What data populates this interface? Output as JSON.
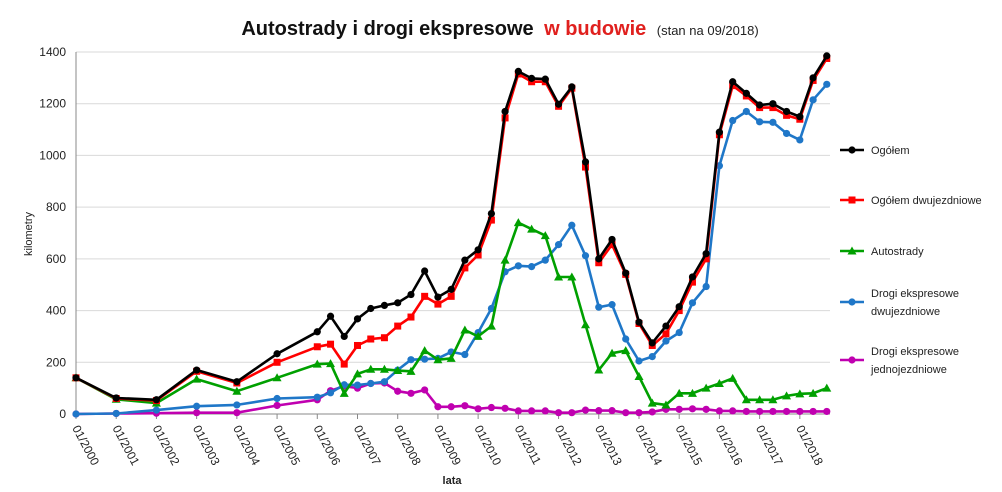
{
  "chart_data": {
    "type": "line",
    "title": "Autostrady i drogi ekspresowe",
    "title_accent": "w budowie",
    "subtitle": "(stan na 09/2018)",
    "xlabel": "lata",
    "ylabel": "kilometry",
    "ylim": [
      0,
      1400
    ],
    "yticks": [
      0,
      200,
      400,
      600,
      800,
      1000,
      1200,
      1400
    ],
    "xlim": [
      2000,
      2018.75
    ],
    "xticks": [
      "01/2000",
      "01/2001",
      "01/2002",
      "01/2003",
      "01/2004",
      "01/2005",
      "01/2006",
      "01/2007",
      "01/2008",
      "01/2009",
      "01/2010",
      "01/2011",
      "01/2012",
      "01/2013",
      "01/2014",
      "01/2015",
      "01/2016",
      "01/2017",
      "01/2018"
    ],
    "grid": "horizontal",
    "legend_position": "right",
    "series": [
      {
        "name": "Ogółem",
        "color": "#000000",
        "marker": "circle",
        "points": [
          [
            2000,
            140
          ],
          [
            2001,
            62
          ],
          [
            2002,
            55
          ],
          [
            2003,
            170
          ],
          [
            2004,
            125
          ],
          [
            2005,
            233
          ],
          [
            2006,
            318
          ],
          [
            2006.33,
            378
          ],
          [
            2006.67,
            300
          ],
          [
            2007,
            368
          ],
          [
            2007.33,
            408
          ],
          [
            2007.67,
            420
          ],
          [
            2008,
            430
          ],
          [
            2008.33,
            462
          ],
          [
            2008.67,
            553
          ],
          [
            2009,
            452
          ],
          [
            2009.33,
            482
          ],
          [
            2009.67,
            595
          ],
          [
            2010,
            635
          ],
          [
            2010.33,
            775
          ],
          [
            2010.67,
            1170
          ],
          [
            2011,
            1325
          ],
          [
            2011.33,
            1298
          ],
          [
            2011.67,
            1295
          ],
          [
            2012,
            1198
          ],
          [
            2012.33,
            1265
          ],
          [
            2012.67,
            975
          ],
          [
            2013,
            600
          ],
          [
            2013.33,
            675
          ],
          [
            2013.67,
            545
          ],
          [
            2014,
            355
          ],
          [
            2014.33,
            275
          ],
          [
            2014.67,
            340
          ],
          [
            2015,
            415
          ],
          [
            2015.33,
            530
          ],
          [
            2015.67,
            620
          ],
          [
            2016,
            1090
          ],
          [
            2016.33,
            1285
          ],
          [
            2016.67,
            1240
          ],
          [
            2017,
            1195
          ],
          [
            2017.33,
            1200
          ],
          [
            2017.67,
            1170
          ],
          [
            2018,
            1150
          ],
          [
            2018.33,
            1300
          ],
          [
            2018.67,
            1385
          ]
        ]
      },
      {
        "name": "Ogółem dwujezdniowe",
        "color": "#ff0000",
        "marker": "square",
        "points": [
          [
            2000,
            140
          ],
          [
            2001,
            60
          ],
          [
            2002,
            52
          ],
          [
            2003,
            165
          ],
          [
            2004,
            120
          ],
          [
            2005,
            200
          ],
          [
            2006,
            260
          ],
          [
            2006.33,
            270
          ],
          [
            2006.67,
            193
          ],
          [
            2007,
            265
          ],
          [
            2007.33,
            290
          ],
          [
            2007.67,
            295
          ],
          [
            2008,
            340
          ],
          [
            2008.33,
            375
          ],
          [
            2008.67,
            455
          ],
          [
            2009,
            425
          ],
          [
            2009.33,
            455
          ],
          [
            2009.67,
            565
          ],
          [
            2010,
            615
          ],
          [
            2010.33,
            750
          ],
          [
            2010.67,
            1145
          ],
          [
            2011,
            1315
          ],
          [
            2011.33,
            1285
          ],
          [
            2011.67,
            1285
          ],
          [
            2012,
            1190
          ],
          [
            2012.33,
            1260
          ],
          [
            2012.67,
            955
          ],
          [
            2013,
            585
          ],
          [
            2013.33,
            655
          ],
          [
            2013.67,
            540
          ],
          [
            2014,
            350
          ],
          [
            2014.33,
            265
          ],
          [
            2014.67,
            310
          ],
          [
            2015,
            400
          ],
          [
            2015.33,
            510
          ],
          [
            2015.67,
            600
          ],
          [
            2016,
            1080
          ],
          [
            2016.33,
            1270
          ],
          [
            2016.67,
            1230
          ],
          [
            2017,
            1185
          ],
          [
            2017.33,
            1185
          ],
          [
            2017.67,
            1155
          ],
          [
            2018,
            1140
          ],
          [
            2018.33,
            1290
          ],
          [
            2018.67,
            1375
          ]
        ]
      },
      {
        "name": "Autostrady",
        "color": "#00a000",
        "marker": "triangle",
        "points": [
          [
            2000,
            140
          ],
          [
            2001,
            57
          ],
          [
            2002,
            42
          ],
          [
            2003,
            135
          ],
          [
            2004,
            88
          ],
          [
            2005,
            140
          ],
          [
            2006,
            193
          ],
          [
            2006.33,
            195
          ],
          [
            2006.67,
            80
          ],
          [
            2007,
            155
          ],
          [
            2007.33,
            173
          ],
          [
            2007.67,
            173
          ],
          [
            2008,
            168
          ],
          [
            2008.33,
            165
          ],
          [
            2008.67,
            245
          ],
          [
            2009,
            210
          ],
          [
            2009.33,
            215
          ],
          [
            2009.67,
            325
          ],
          [
            2010,
            300
          ],
          [
            2010.33,
            340
          ],
          [
            2010.67,
            595
          ],
          [
            2011,
            740
          ],
          [
            2011.33,
            715
          ],
          [
            2011.67,
            690
          ],
          [
            2012,
            530
          ],
          [
            2012.33,
            530
          ],
          [
            2012.67,
            345
          ],
          [
            2013,
            170
          ],
          [
            2013.33,
            235
          ],
          [
            2013.67,
            245
          ],
          [
            2014,
            145
          ],
          [
            2014.33,
            42
          ],
          [
            2014.67,
            35
          ],
          [
            2015,
            80
          ],
          [
            2015.33,
            80
          ],
          [
            2015.67,
            100
          ],
          [
            2016,
            118
          ],
          [
            2016.33,
            138
          ],
          [
            2016.67,
            55
          ],
          [
            2017,
            55
          ],
          [
            2017.33,
            55
          ],
          [
            2017.67,
            70
          ],
          [
            2018,
            78
          ],
          [
            2018.33,
            80
          ],
          [
            2018.67,
            100
          ]
        ]
      },
      {
        "name": "Drogi ekspresowe dwujezdniowe",
        "color": "#1f77c8",
        "marker": "circle",
        "points": [
          [
            2000,
            0
          ],
          [
            2001,
            2
          ],
          [
            2002,
            15
          ],
          [
            2003,
            30
          ],
          [
            2004,
            35
          ],
          [
            2005,
            60
          ],
          [
            2006,
            65
          ],
          [
            2006.33,
            82
          ],
          [
            2006.67,
            113
          ],
          [
            2007,
            112
          ],
          [
            2007.33,
            118
          ],
          [
            2007.67,
            125
          ],
          [
            2008,
            170
          ],
          [
            2008.33,
            210
          ],
          [
            2008.67,
            212
          ],
          [
            2009,
            215
          ],
          [
            2009.33,
            240
          ],
          [
            2009.67,
            230
          ],
          [
            2010,
            315
          ],
          [
            2010.33,
            408
          ],
          [
            2010.67,
            550
          ],
          [
            2011,
            573
          ],
          [
            2011.33,
            570
          ],
          [
            2011.67,
            595
          ],
          [
            2012,
            655
          ],
          [
            2012.33,
            730
          ],
          [
            2012.67,
            612
          ],
          [
            2013,
            413
          ],
          [
            2013.33,
            423
          ],
          [
            2013.67,
            290
          ],
          [
            2014,
            205
          ],
          [
            2014.33,
            222
          ],
          [
            2014.67,
            282
          ],
          [
            2015,
            315
          ],
          [
            2015.33,
            430
          ],
          [
            2015.67,
            493
          ],
          [
            2016,
            960
          ],
          [
            2016.33,
            1135
          ],
          [
            2016.67,
            1170
          ],
          [
            2017,
            1130
          ],
          [
            2017.33,
            1128
          ],
          [
            2017.67,
            1085
          ],
          [
            2018,
            1060
          ],
          [
            2018.33,
            1215
          ],
          [
            2018.67,
            1275
          ]
        ]
      },
      {
        "name": "Drogi ekspresowe jednojezdniowe",
        "color": "#c000b0",
        "marker": "circle",
        "points": [
          [
            2000,
            0
          ],
          [
            2001,
            2
          ],
          [
            2002,
            3
          ],
          [
            2003,
            5
          ],
          [
            2004,
            5
          ],
          [
            2005,
            33
          ],
          [
            2006,
            55
          ],
          [
            2006.33,
            90
          ],
          [
            2006.67,
            108
          ],
          [
            2007,
            100
          ],
          [
            2007.33,
            118
          ],
          [
            2007.67,
            120
          ],
          [
            2008,
            88
          ],
          [
            2008.33,
            80
          ],
          [
            2008.67,
            93
          ],
          [
            2009,
            28
          ],
          [
            2009.33,
            28
          ],
          [
            2009.67,
            32
          ],
          [
            2010,
            20
          ],
          [
            2010.33,
            25
          ],
          [
            2010.67,
            22
          ],
          [
            2011,
            12
          ],
          [
            2011.33,
            12
          ],
          [
            2011.67,
            12
          ],
          [
            2012,
            5
          ],
          [
            2012.33,
            5
          ],
          [
            2012.67,
            15
          ],
          [
            2013,
            13
          ],
          [
            2013.33,
            13
          ],
          [
            2013.67,
            5
          ],
          [
            2014,
            5
          ],
          [
            2014.33,
            8
          ],
          [
            2014.67,
            18
          ],
          [
            2015,
            18
          ],
          [
            2015.33,
            20
          ],
          [
            2015.67,
            18
          ],
          [
            2016,
            12
          ],
          [
            2016.33,
            12
          ],
          [
            2016.67,
            10
          ],
          [
            2017,
            10
          ],
          [
            2017.33,
            10
          ],
          [
            2017.67,
            10
          ],
          [
            2018,
            10
          ],
          [
            2018.33,
            10
          ],
          [
            2018.67,
            10
          ]
        ]
      }
    ]
  }
}
